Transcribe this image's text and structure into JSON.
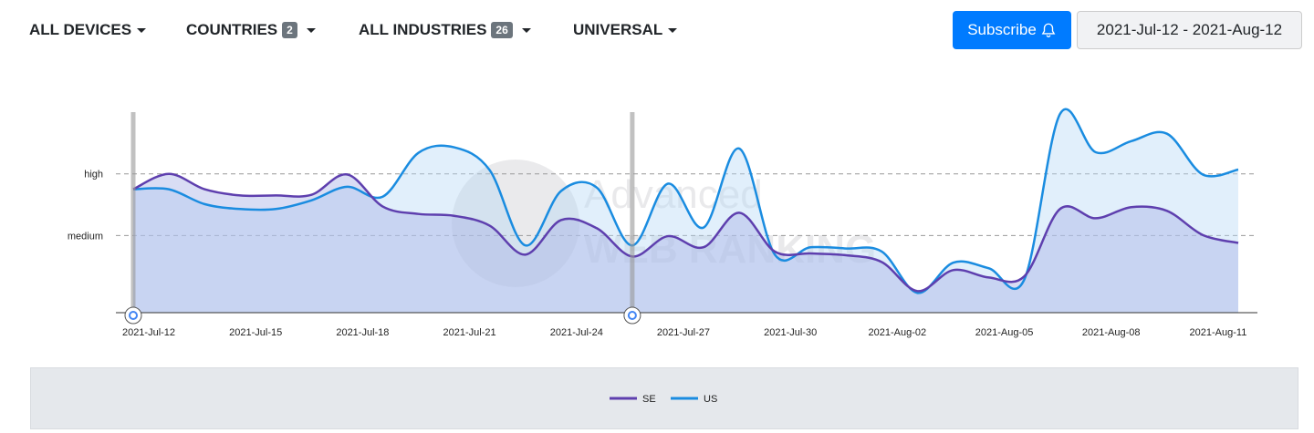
{
  "toolbar": {
    "devices": "ALL DEVICES",
    "countries": "COUNTRIES",
    "countries_count": "2",
    "industries": "ALL INDUSTRIES",
    "industries_count": "26",
    "search": "UNIVERSAL",
    "subscribe": "Subscribe",
    "date_range": "2021-Jul-12 - 2021-Aug-12"
  },
  "chart_data": {
    "type": "line",
    "watermark": [
      "Advanced",
      "WEB RANKING"
    ],
    "categories": [
      "2021-Jul-12",
      null,
      null,
      "2021-Jul-15",
      null,
      null,
      "2021-Jul-18",
      null,
      null,
      "2021-Jul-21",
      null,
      null,
      "2021-Jul-24",
      null,
      null,
      "2021-Jul-27",
      null,
      null,
      "2021-Jul-30",
      null,
      null,
      "2021-Aug-02",
      null,
      null,
      "2021-Aug-05",
      null,
      null,
      "2021-Aug-08",
      null,
      null,
      "2021-Aug-11",
      null
    ],
    "ylim": [
      0.75,
      4
    ],
    "yticks": [
      {
        "value": 2,
        "label": "medium"
      },
      {
        "value": 3,
        "label": "high"
      }
    ],
    "grid": true,
    "legend": "bottom",
    "series": [
      {
        "name": "SE",
        "color": "#5e3fae",
        "fill": "rgba(170,180,230,0.45)",
        "values": [
          2.75,
          3.0,
          2.75,
          2.65,
          2.65,
          2.66,
          2.99,
          2.47,
          2.35,
          2.32,
          2.16,
          1.69,
          2.25,
          2.12,
          1.66,
          1.99,
          1.81,
          2.37,
          1.74,
          1.71,
          1.68,
          1.57,
          1.1,
          1.44,
          1.32,
          1.34,
          2.43,
          2.28,
          2.46,
          2.4,
          2.01,
          1.88
        ]
      },
      {
        "name": "US",
        "color": "#1a8ce0",
        "fill": "rgba(180,215,245,0.4)",
        "values": [
          2.75,
          2.75,
          2.51,
          2.43,
          2.43,
          2.57,
          2.79,
          2.63,
          3.34,
          3.43,
          3.06,
          1.84,
          2.72,
          2.78,
          1.84,
          2.84,
          2.13,
          3.41,
          1.69,
          1.81,
          1.79,
          1.74,
          1.07,
          1.56,
          1.47,
          1.29,
          3.97,
          3.35,
          3.53,
          3.65,
          2.99,
          3.07
        ]
      }
    ]
  }
}
